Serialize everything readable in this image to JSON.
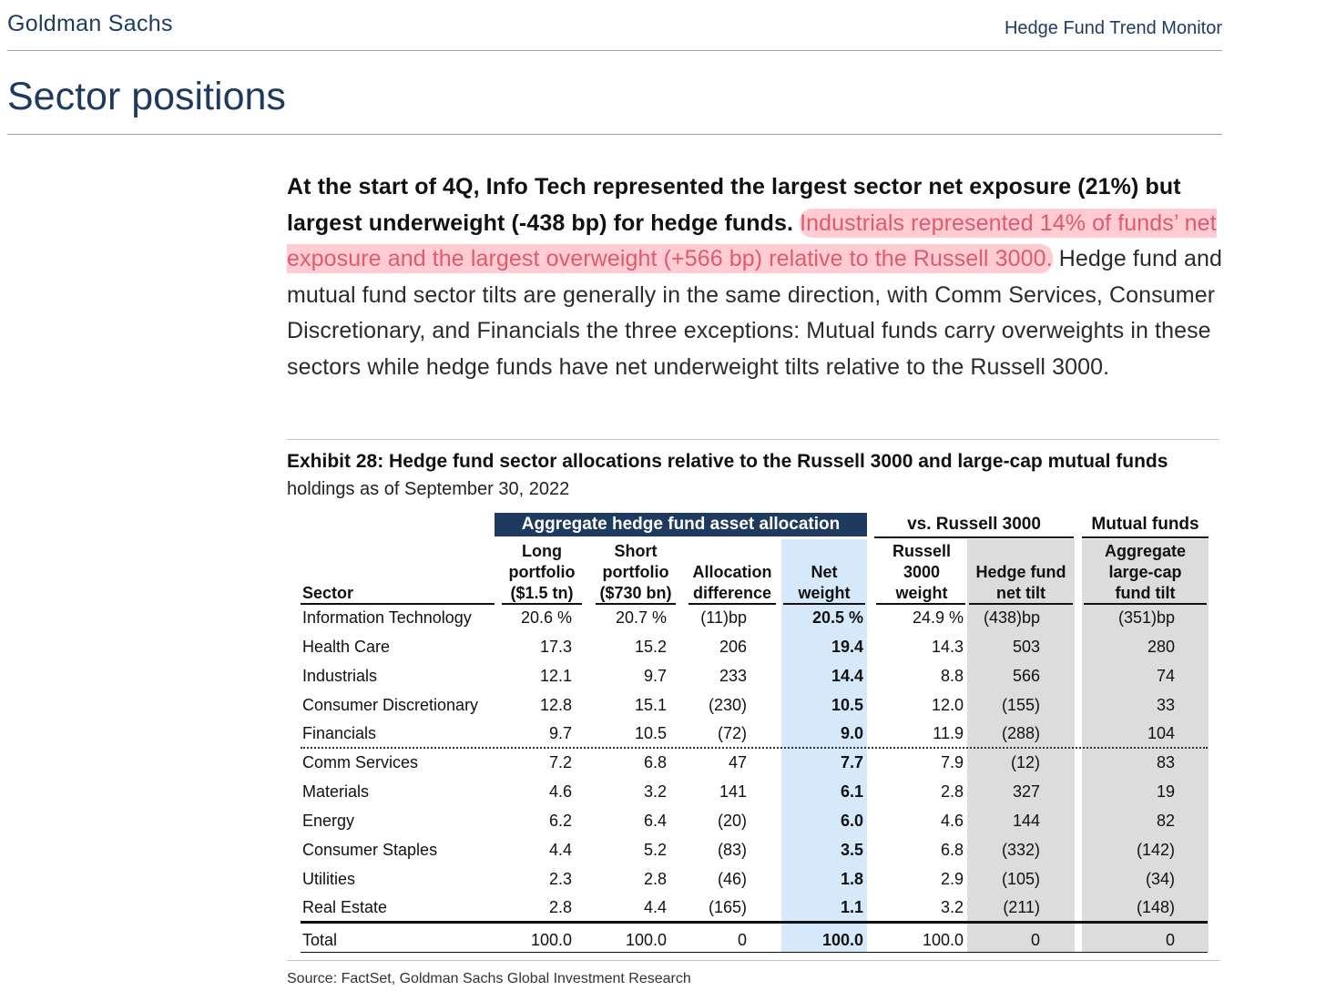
{
  "header": {
    "brand": "Goldman Sachs",
    "report": "Hedge Fund Trend Monitor"
  },
  "title": "Sector positions",
  "paragraph": {
    "bold": "At the start of 4Q, Info Tech represented the largest sector net exposure (21%) but largest underweight (-438 bp) for hedge funds.",
    "highlight": "Industrials represented 14% of funds’ net exposure and the largest overweight (+566 bp) relative to the Russell 3000.",
    "rest": "Hedge fund and mutual fund sector tilts are generally in the same direction, with Comm Services, Consumer Discretionary, and Financials the three exceptions: Mutual funds carry overweights in these sectors while hedge funds have net underweight tilts relative to the Russell 3000."
  },
  "exhibit": {
    "title": "Exhibit 28: Hedge fund sector allocations relative to the Russell 3000 and large-cap mutual funds",
    "subtitle": "holdings as of September 30, 2022",
    "groups": {
      "agg": "Aggregate hedge fund asset allocation",
      "russell": "vs. Russell 3000",
      "mf": "Mutual funds"
    },
    "headers": {
      "sector": "Sector",
      "long": [
        "Long",
        "portfolio",
        "($1.5 tn)"
      ],
      "short": [
        "Short",
        "portfolio",
        "($730 bn)"
      ],
      "alloc": [
        "Allocation",
        "difference"
      ],
      "net": [
        "Net",
        "weight"
      ],
      "russell": [
        "Russell",
        "3000",
        "weight"
      ],
      "hftilt": [
        "Hedge fund",
        "net tilt"
      ],
      "mftilt": [
        "Aggregate",
        "large-cap",
        "fund tilt"
      ]
    },
    "rows": [
      {
        "sector": "Information Technology",
        "long": "20.6 %",
        "short": "20.7 %",
        "alloc": "(11)bp",
        "net": "20.5 %",
        "russell": "24.9 %",
        "hftilt": "(438)bp",
        "mftilt": "(351)bp"
      },
      {
        "sector": "Health Care",
        "long": "17.3",
        "short": "15.2",
        "alloc": "206",
        "net": "19.4",
        "russell": "14.3",
        "hftilt": "503",
        "mftilt": "280"
      },
      {
        "sector": "Industrials",
        "long": "12.1",
        "short": "9.7",
        "alloc": "233",
        "net": "14.4",
        "russell": "8.8",
        "hftilt": "566",
        "mftilt": "74"
      },
      {
        "sector": "Consumer Discretionary",
        "long": "12.8",
        "short": "15.1",
        "alloc": "(230)",
        "net": "10.5",
        "russell": "12.0",
        "hftilt": "(155)",
        "mftilt": "33"
      },
      {
        "sector": "Financials",
        "long": "9.7",
        "short": "10.5",
        "alloc": "(72)",
        "net": "9.0",
        "russell": "11.9",
        "hftilt": "(288)",
        "mftilt": "104"
      },
      {
        "sector": "Comm Services",
        "long": "7.2",
        "short": "6.8",
        "alloc": "47",
        "net": "7.7",
        "russell": "7.9",
        "hftilt": "(12)",
        "mftilt": "83"
      },
      {
        "sector": "Materials",
        "long": "4.6",
        "short": "3.2",
        "alloc": "141",
        "net": "6.1",
        "russell": "2.8",
        "hftilt": "327",
        "mftilt": "19"
      },
      {
        "sector": "Energy",
        "long": "6.2",
        "short": "6.4",
        "alloc": "(20)",
        "net": "6.0",
        "russell": "4.6",
        "hftilt": "144",
        "mftilt": "82"
      },
      {
        "sector": "Consumer Staples",
        "long": "4.4",
        "short": "5.2",
        "alloc": "(83)",
        "net": "3.5",
        "russell": "6.8",
        "hftilt": "(332)",
        "mftilt": "(142)"
      },
      {
        "sector": "Utilities",
        "long": "2.3",
        "short": "2.8",
        "alloc": "(46)",
        "net": "1.8",
        "russell": "2.9",
        "hftilt": "(105)",
        "mftilt": "(34)"
      },
      {
        "sector": "Real Estate",
        "long": "2.8",
        "short": "4.4",
        "alloc": "(165)",
        "net": "1.1",
        "russell": "3.2",
        "hftilt": "(211)",
        "mftilt": "(148)"
      }
    ],
    "total": {
      "sector": "Total",
      "long": "100.0",
      "short": "100.0",
      "alloc": "0",
      "net": "100.0",
      "russell": "100.0",
      "hftilt": "0",
      "mftilt": "0"
    },
    "source": "Source: FactSet, Goldman Sachs Global Investment Research"
  }
}
